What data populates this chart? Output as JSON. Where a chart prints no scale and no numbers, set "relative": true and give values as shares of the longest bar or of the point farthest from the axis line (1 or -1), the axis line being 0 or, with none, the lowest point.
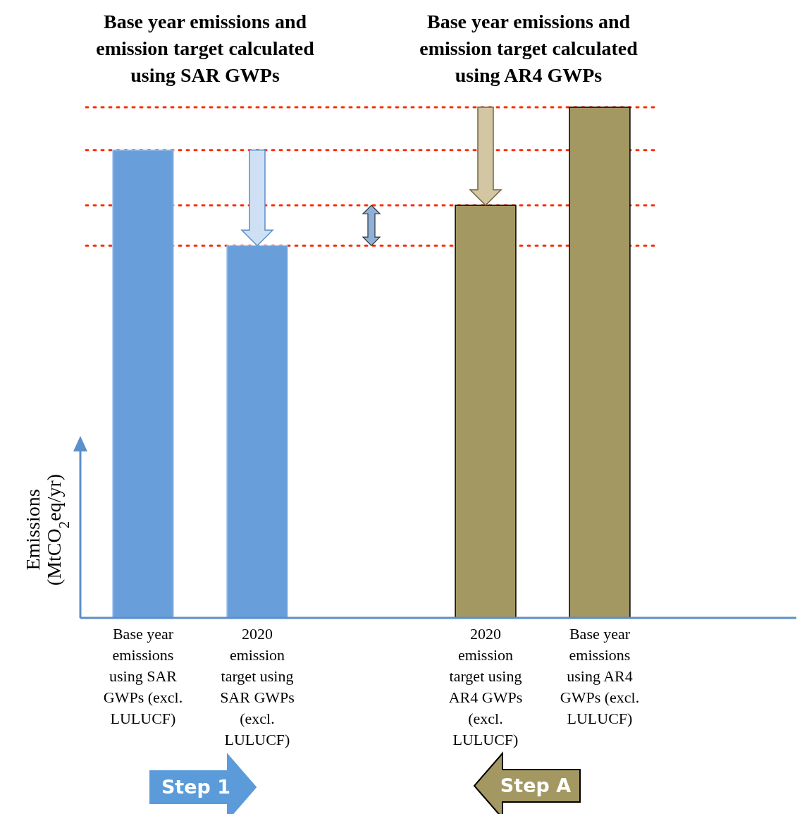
{
  "chart_data": {
    "type": "bar",
    "relative": true,
    "ylabel": "Emissions (MtCO$_{2}$eq/yr)",
    "categories": [
      "Base year emissions using SAR GWPs (excl. LULUCF)",
      "2020 emission target using SAR GWPs (excl. LULUCF)",
      null,
      "2020 emission target using AR4 GWPs (excl. LULUCF)",
      "Base year emissions using AR4 GWPs (excl. LULUCF)"
    ],
    "values": [
      0.916,
      0.729,
      null,
      0.808,
      1
    ],
    "colors": [
      "#689fdb",
      "#689fdb",
      null,
      "#a39862",
      "#a39862"
    ],
    "ref_lines": [
      {
        "axis": "y",
        "value": 0.916,
        "color": "#ff2a00",
        "line_style": "dotted"
      },
      {
        "axis": "y",
        "value": 0.729,
        "color": "#ff2a00",
        "line_style": "dotted"
      },
      {
        "axis": "y",
        "value": 0.808,
        "color": "#ff2a00",
        "line_style": "dotted"
      },
      {
        "axis": "y",
        "value": 1,
        "color": "#ff2a00",
        "line_style": "dotted"
      }
    ],
    "annotations": [
      "Base year emissions and emission target calculated using SAR GWPs",
      "Base year emissions and emission target calculated using AR4 GWPs",
      "Step 1",
      "Step A"
    ],
    "stacked": false
  }
}
